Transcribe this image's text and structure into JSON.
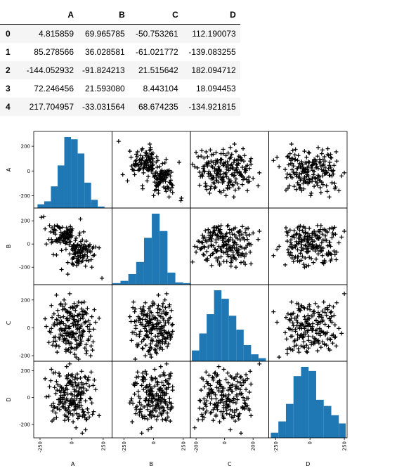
{
  "table": {
    "columns": [
      "",
      "A",
      "B",
      "C",
      "D"
    ],
    "rows": [
      [
        "0",
        "4.815859",
        "69.965785",
        "-50.753261",
        "112.190073"
      ],
      [
        "1",
        "85.278566",
        "36.028581",
        "-61.021772",
        "-139.083255"
      ],
      [
        "2",
        "-144.052932",
        "-91.824213",
        "21.515642",
        "182.094712"
      ],
      [
        "3",
        "72.246456",
        "21.593080",
        "8.443104",
        "18.094453"
      ],
      [
        "4",
        "217.704957",
        "-33.031564",
        "68.674235",
        "-134.921815"
      ]
    ]
  },
  "chart_data": {
    "type": "scatter",
    "subtype": "scatter_matrix",
    "variables": [
      "A",
      "B",
      "C",
      "D"
    ],
    "diagonal": "hist",
    "marker": "+",
    "marker_color": "#000000",
    "hist_color": "#1f77b4",
    "axes": {
      "A": {
        "lim": [
          -300,
          320
        ],
        "ticks": [
          -250,
          0,
          250
        ],
        "row_ticks": [
          -200,
          0,
          200
        ]
      },
      "B": {
        "lim": [
          -350,
          310
        ],
        "ticks": [
          -250,
          0,
          250
        ],
        "row_ticks": [
          -200,
          0,
          200
        ]
      },
      "C": {
        "lim": [
          -240,
          310
        ],
        "ticks": [
          -200,
          0,
          200
        ],
        "row_ticks": [
          -200,
          0,
          200
        ]
      },
      "D": {
        "lim": [
          -300,
          270
        ],
        "ticks": [
          -250,
          0,
          250
        ],
        "row_ticks": [
          -200,
          0,
          200
        ]
      }
    },
    "histograms": {
      "A": {
        "edges": [
          -270,
          -217,
          -164,
          -111,
          -58,
          -5,
          48,
          101,
          154,
          207,
          260
        ],
        "counts": [
          5,
          9,
          29,
          57,
          95,
          92,
          73,
          34,
          11,
          2
        ]
      },
      "B": {
        "edges": [
          -345,
          -279,
          -213,
          -147,
          -81,
          -15,
          51,
          117,
          183,
          249,
          310
        ],
        "counts": [
          2,
          5,
          14,
          30,
          62,
          94,
          71,
          16,
          3,
          2
        ]
      },
      "C": {
        "edges": [
          -230,
          -178,
          -126,
          -74,
          -22,
          30,
          82,
          134,
          186,
          238,
          290
        ],
        "counts": [
          14,
          36,
          61,
          92,
          81,
          59,
          41,
          21,
          9,
          4
        ]
      },
      "D": {
        "edges": [
          -285,
          -230,
          -175,
          -120,
          -65,
          -10,
          45,
          100,
          155,
          210,
          260
        ],
        "counts": [
          5,
          16,
          33,
          60,
          69,
          65,
          37,
          31,
          22,
          14
        ]
      }
    },
    "points": {
      "A": [
        4.8,
        85.3,
        -144.1,
        72.2,
        217.7,
        -35,
        20,
        -60,
        110,
        -5,
        40,
        -90,
        150,
        5,
        -20,
        60,
        -120,
        30,
        -45,
        95,
        12,
        -70,
        135,
        -25,
        55,
        -150,
        80,
        -10,
        25,
        -55,
        170,
        -95,
        45,
        0,
        -30,
        115,
        -80,
        65,
        -15,
        35,
        -200,
        90,
        -40,
        10,
        -65,
        140,
        -110,
        50,
        -5,
        75,
        -130,
        20,
        -50,
        160,
        -20,
        100,
        -85,
        30,
        -35,
        70,
        -175,
        120,
        -60,
        15,
        -10,
        85,
        -100,
        45,
        -70,
        190,
        -25,
        55,
        -140,
        5,
        -45,
        105,
        -90,
        65,
        -15,
        40,
        -160,
        125,
        -55,
        25,
        -30,
        80,
        -115,
        10,
        -75,
        145,
        -5,
        60,
        -95,
        35,
        -20,
        110,
        -125,
        50,
        -40,
        0,
        -210,
        95,
        -65,
        20,
        -50,
        155,
        -85,
        75,
        -10,
        45,
        -135,
        30,
        -60,
        120,
        -30,
        5,
        -105,
        70,
        -45,
        180,
        -20,
        90,
        -155,
        40,
        -70,
        15,
        -95,
        130,
        -35,
        60,
        -120,
        25,
        -55,
        100,
        -5,
        50,
        -180,
        85,
        -25,
        10,
        -80,
        165,
        -40,
        70,
        -110,
        35,
        -15,
        115,
        -140,
        55,
        -65,
        20,
        -90,
        140,
        -30,
        80,
        -50,
        5,
        -125,
        95,
        -75,
        45,
        -10,
        60,
        -165,
        30,
        -45,
        125,
        -100,
        15,
        -60,
        105,
        -20,
        75,
        -135,
        40,
        -85,
        175,
        -35,
        65,
        -115,
        10,
        -50,
        90,
        -145,
        50,
        -25,
        135,
        -70,
        20,
        -95,
        110,
        -40,
        85,
        -160,
        35,
        -15,
        55,
        -120,
        150,
        -60,
        25,
        -80,
        70,
        -30,
        -240,
        240,
        -220,
        230,
        -195,
        200,
        -260
      ],
      "B": [
        70.0,
        36.0,
        -91.8,
        21.6,
        -33.0,
        45,
        -110,
        90,
        -20,
        60,
        -150,
        10,
        -60,
        130,
        -5,
        75,
        -95,
        30,
        -45,
        105,
        -180,
        55,
        -15,
        80,
        -130,
        20,
        -70,
        150,
        -35,
        65,
        -100,
        40,
        -10,
        115,
        -160,
        25,
        -55,
        95,
        -85,
        50,
        0,
        -120,
        140,
        -40,
        70,
        -20,
        35,
        -140,
        110,
        -65,
        85,
        -5,
        45,
        -200,
        125,
        -30,
        60,
        -80,
        15,
        -115,
        160,
        -50,
        75,
        -10,
        100,
        -145,
        30,
        -60,
        90,
        -25,
        55,
        -170,
        120,
        -45,
        10,
        -90,
        135,
        -15,
        80,
        -125,
        40,
        -70,
        105,
        -35,
        65,
        -155,
        20,
        -55,
        145,
        -5,
        95,
        -100,
        50,
        -30,
        115,
        -190,
        25,
        -75,
        85,
        -20,
        130,
        -110,
        60,
        -45,
        5,
        -135,
        100,
        -65,
        70,
        -10,
        155,
        -85,
        35,
        -40,
        120,
        -165,
        45,
        -25,
        90,
        -95,
        15,
        -60,
        140,
        -30,
        75,
        -120,
        55,
        -15,
        110,
        -150,
        30,
        -70,
        95,
        -5,
        125,
        -105,
        40,
        -50,
        80,
        -175,
        60,
        -35,
        10,
        -80,
        150,
        -20,
        65,
        -140,
        100,
        -45,
        25,
        -90,
        135,
        -60,
        85,
        -10,
        45,
        -130,
        115,
        -30,
        70,
        -160,
        20,
        -75,
        105,
        -40,
        55,
        -110,
        145,
        -15,
        90,
        -95,
        35,
        -55,
        125,
        -185,
        80,
        -25,
        15,
        -65,
        160,
        -120,
        50,
        -35,
        100,
        -5,
        75,
        -145,
        30,
        -85,
        140,
        -45,
        60,
        -100,
        10,
        -20,
        110,
        -155,
        40,
        -70,
        95,
        -30,
        -220,
        215,
        -260,
        230,
        -295,
        235,
        -340
      ],
      "C": [
        -50.8,
        -61.0,
        21.5,
        8.4,
        68.7,
        -90,
        40,
        -20,
        110,
        -140,
        15,
        75,
        -60,
        150,
        -5,
        -110,
        60,
        25,
        -170,
        95,
        -35,
        130,
        -80,
        5,
        50,
        -125,
        180,
        -45,
        85,
        -15,
        -100,
        30,
        160,
        -70,
        115,
        -185,
        45,
        -30,
        90,
        -150,
        10,
        70,
        -55,
        140,
        -95,
        -10,
        55,
        -130,
        105,
        20,
        -65,
        175,
        -40,
        80,
        -115,
        35,
        -5,
        125,
        -160,
        65,
        -25,
        100,
        -85,
        15,
        145,
        -50,
        -135,
        90,
        -20,
        40,
        -100,
        185,
        -70,
        30,
        -155,
        115,
        -45,
        -5,
        70,
        -120,
        160,
        10,
        -80,
        55,
        -30,
        135,
        -175,
        85,
        -60,
        25,
        -110,
        100,
        -15,
        150,
        -40,
        45,
        -95,
        -5,
        120,
        -145,
        65,
        -25,
        80,
        -70,
        170,
        -130,
        35,
        -55,
        105,
        -10,
        20,
        -85,
        140,
        -165,
        50,
        -35,
        90,
        -115,
        15,
        130,
        -60,
        -20,
        75,
        -140,
        155,
        -45,
        40,
        -90,
        110,
        -5,
        -125,
        60,
        -75,
        185,
        -30,
        25,
        -105,
        85,
        -50,
        145,
        -15,
        -160,
        65,
        -80,
        125,
        -40,
        10,
        -120,
        100,
        -65,
        30,
        -150,
        165,
        -25,
        55,
        -95,
        -5,
        80,
        -135,
        120,
        -55,
        45,
        -175,
        95,
        -35,
        15,
        -110,
        140,
        -70,
        60,
        -20,
        -145,
        110,
        -50,
        35,
        -90,
        175,
        -10,
        70,
        -125,
        25,
        -60,
        130,
        -30,
        -100,
        85,
        -155,
        50,
        -15,
        150,
        -80,
        40,
        -40,
        115,
        -5,
        -210,
        245,
        -225,
        235,
        -200,
        200,
        -190
      ],
      "D": [
        112.2,
        -139.1,
        182.1,
        18.1,
        -134.9,
        60,
        -90,
        20,
        150,
        -40,
        -120,
        85,
        -10,
        170,
        -60,
        35,
        -150,
        110,
        -25,
        70,
        -180,
        0,
        130,
        -75,
        45,
        -100,
        195,
        -45,
        10,
        -130,
        90,
        -15,
        140,
        -55,
        25,
        -165,
        75,
        -35,
        120,
        -85,
        5,
        -110,
        160,
        -20,
        55,
        -145,
        95,
        -65,
        30,
        -10,
        185,
        -95,
        65,
        -40,
        105,
        -125,
        15,
        -70,
        145,
        -5,
        80,
        -160,
        40,
        -30,
        125,
        -90,
        -50,
        175,
        -15,
        60,
        -115,
        100,
        -75,
        20,
        -140,
        155,
        -35,
        70,
        -100,
        10,
        -60,
        135,
        -170,
        45,
        -20,
        110,
        -80,
        85,
        -45,
        -5,
        165,
        -130,
        50,
        -65,
        115,
        -25,
        30,
        -155,
        90,
        -10,
        140,
        -105,
        65,
        -50,
        -85,
        190,
        -30,
        75,
        -120,
        15,
        -70,
        150,
        -40,
        55,
        -145,
        100,
        -15,
        25,
        -95,
        130,
        -60,
        40,
        -175,
        80,
        -5,
        -35,
        160,
        -110,
        60,
        -75,
        120,
        -20,
        35,
        -135,
        95,
        -55,
        10,
        -90,
        170,
        -45,
        70,
        -125,
        -10,
        145,
        -80,
        50,
        -30,
        105,
        -160,
        20,
        -65,
        135,
        -5,
        85,
        -100,
        45,
        -40,
        155,
        -115,
        30,
        -70,
        90,
        -20,
        -140,
        125,
        -50,
        65,
        -85,
        180,
        -35,
        15,
        -150,
        110,
        -60,
        75,
        -10,
        40,
        -105,
        140,
        -25,
        55,
        -130,
        -75,
        95,
        -45,
        20,
        -165,
        150,
        -15,
        60,
        -90,
        -240,
        230,
        -265,
        210,
        -225,
        250,
        -295
      ]
    }
  }
}
